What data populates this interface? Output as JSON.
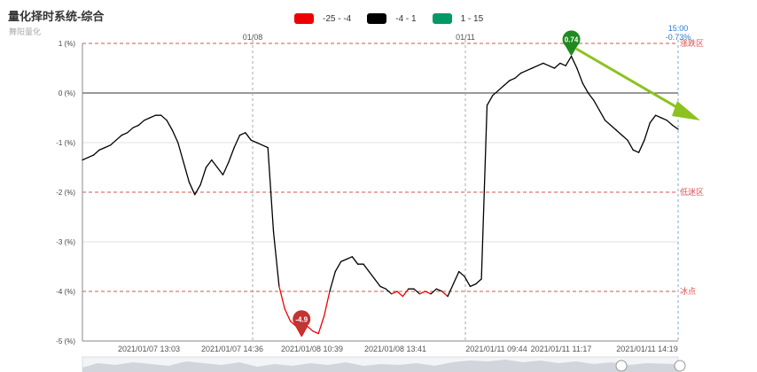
{
  "chart_data": {
    "type": "line",
    "title": "量化择时系统-综合",
    "subtitle": "舞阳量化",
    "ylim": [
      -5,
      1
    ],
    "yticks": [
      "1 (%)",
      "0 (%)",
      "-1 (%)",
      "-2 (%)",
      "-3 (%)",
      "-4 (%)",
      "-5 (%)"
    ],
    "ytick_values": [
      1,
      0,
      -1,
      -2,
      -3,
      -4,
      -5
    ],
    "xticks": [
      "2021/01/07 13:03",
      "2021/01/07 14:36",
      "2021/01/08 10:39",
      "2021/01/08 13:41",
      "2021/01/11 09:44",
      "2021/01/11 11:17",
      "2021/01/11 14:19"
    ],
    "day_markers": [
      "01/08",
      "01/11"
    ],
    "end_marker": {
      "time": "15:00",
      "value": "-0.73%"
    },
    "thresholds": [
      {
        "value": 1,
        "label": "涨跌区"
      },
      {
        "value": -2,
        "label": "低迷区"
      },
      {
        "value": -4,
        "label": "冰点"
      }
    ],
    "legend": [
      {
        "label": "-25 - -4",
        "color": "#ee0000"
      },
      {
        "label": "-4 - 1",
        "color": "#000000"
      },
      {
        "label": "1 - 15",
        "color": "#009a66"
      }
    ],
    "max_point": {
      "label": "0.74",
      "value": 0.74,
      "color": "#1f8a1f"
    },
    "min_point": {
      "label": "-4.9",
      "value": -4.9,
      "color": "#c23531"
    },
    "series": [
      {
        "values": [
          -1.35,
          -1.3,
          -1.25,
          -1.15,
          -1.1,
          -1.05,
          -0.95,
          -0.85,
          -0.8,
          -0.7,
          -0.65,
          -0.55,
          -0.5,
          -0.45,
          -0.45,
          -0.55,
          -0.75,
          -1.0,
          -1.4,
          -1.8,
          -2.05,
          -1.85,
          -1.5,
          -1.35,
          -1.5,
          -1.65,
          -1.4,
          -1.1,
          -0.85,
          -0.8,
          -0.95,
          -1.0,
          -1.05,
          -1.1,
          -2.8,
          -3.9,
          -4.35,
          -4.6,
          -4.7,
          -4.9,
          -4.7,
          -4.8,
          -4.85,
          -4.5,
          -4.0,
          -3.6,
          -3.4,
          -3.35,
          -3.3,
          -3.45,
          -3.45,
          -3.6,
          -3.75,
          -3.9,
          -3.95,
          -4.05,
          -4.0,
          -4.1,
          -3.95,
          -3.95,
          -4.05,
          -4.0,
          -4.05,
          -3.95,
          -4.0,
          -4.1,
          -3.85,
          -3.6,
          -3.7,
          -3.9,
          -3.85,
          -3.75,
          -0.25,
          -0.05,
          0.05,
          0.15,
          0.25,
          0.3,
          0.4,
          0.45,
          0.5,
          0.55,
          0.6,
          0.55,
          0.5,
          0.6,
          0.55,
          0.74,
          0.5,
          0.2,
          0.0,
          -0.15,
          -0.35,
          -0.55,
          -0.65,
          -0.75,
          -0.85,
          -0.95,
          -1.15,
          -1.2,
          -0.95,
          -0.6,
          -0.45,
          -0.5,
          -0.55,
          -0.65,
          -0.73
        ]
      }
    ]
  }
}
